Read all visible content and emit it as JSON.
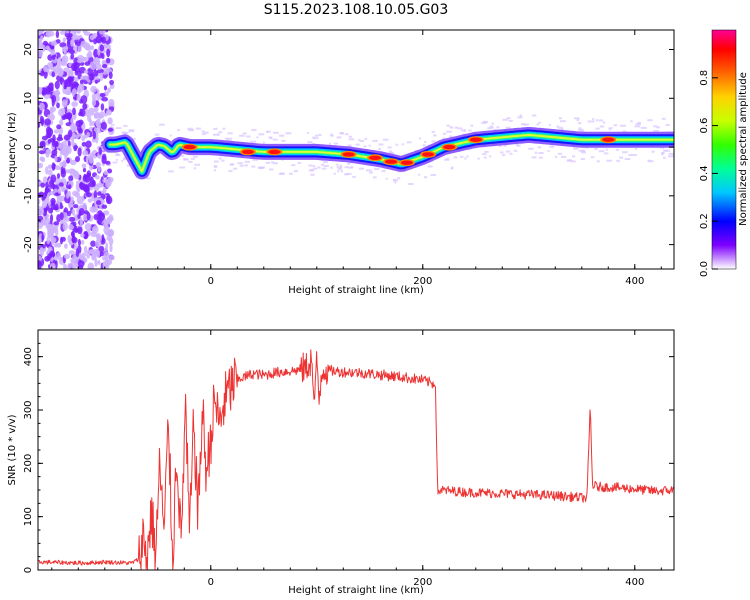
{
  "title": "S115.2023.108.10.05.G03",
  "chart_data": [
    {
      "type": "heatmap",
      "xlabel": "Height of straight line (km)",
      "ylabel": "Frequency (Hz)",
      "xlim": [
        -163,
        437
      ],
      "ylim": [
        -25,
        24
      ],
      "xticks": [
        0,
        200,
        400
      ],
      "yticks": [
        -20,
        -10,
        0,
        10,
        20
      ],
      "colorbar": {
        "label": "Normalized spectral amplitude",
        "range": [
          0,
          1
        ],
        "ticks": [
          "0.0",
          "0.2",
          "0.4",
          "0.6",
          "0.8"
        ]
      },
      "noise_region": {
        "x_range": [
          -163,
          -93
        ],
        "y_range": [
          -25,
          24
        ]
      },
      "ridge": [
        {
          "x": -90,
          "y": 0.5
        },
        {
          "x": -80,
          "y": 1
        },
        {
          "x": -70,
          "y": -3
        },
        {
          "x": -65,
          "y": -5
        },
        {
          "x": -58,
          "y": -1
        },
        {
          "x": -50,
          "y": 0.5
        },
        {
          "x": -44,
          "y": 0.2
        },
        {
          "x": -36,
          "y": -1.2
        },
        {
          "x": -30,
          "y": 0.5
        },
        {
          "x": -20,
          "y": 0
        },
        {
          "x": 0,
          "y": 0
        },
        {
          "x": 50,
          "y": -1
        },
        {
          "x": 100,
          "y": -1
        },
        {
          "x": 130,
          "y": -1.5
        },
        {
          "x": 160,
          "y": -2.5
        },
        {
          "x": 180,
          "y": -3.5
        },
        {
          "x": 200,
          "y": -2
        },
        {
          "x": 220,
          "y": 0
        },
        {
          "x": 250,
          "y": 1.5
        },
        {
          "x": 300,
          "y": 2.5
        },
        {
          "x": 350,
          "y": 1.5
        },
        {
          "x": 400,
          "y": 1.5
        },
        {
          "x": 437,
          "y": 1.5
        }
      ],
      "peaks": [
        {
          "x": -20,
          "y": 0
        },
        {
          "x": 35,
          "y": -1
        },
        {
          "x": 60,
          "y": -1
        },
        {
          "x": 130,
          "y": -1.5
        },
        {
          "x": 155,
          "y": -2.2
        },
        {
          "x": 170,
          "y": -3
        },
        {
          "x": 185,
          "y": -3.2
        },
        {
          "x": 205,
          "y": -1.5
        },
        {
          "x": 225,
          "y": 0
        },
        {
          "x": 250,
          "y": 1.5
        },
        {
          "x": 375,
          "y": 1.5
        }
      ]
    },
    {
      "type": "line",
      "xlabel": "Height of straight line (km)",
      "ylabel": "SNR (10 * v/v)",
      "xlim": [
        -163,
        437
      ],
      "ylim": [
        0,
        450
      ],
      "xticks": [
        0,
        200,
        400
      ],
      "yticks": [
        0,
        100,
        200,
        300,
        400
      ],
      "color": "#ee3333",
      "series": [
        {
          "x": [
            -163,
            -140,
            -120,
            -100,
            -75,
            -68,
            -64,
            -60,
            -56,
            -52,
            -48,
            -44,
            -40,
            -36,
            -32,
            -28,
            -24,
            -20,
            -16,
            -12,
            -8,
            -4,
            0,
            4,
            8,
            12,
            16,
            20,
            24,
            28,
            32,
            40,
            50,
            60,
            70,
            80,
            85,
            90,
            95,
            98,
            100,
            102,
            105,
            110,
            120,
            140,
            160,
            180,
            200,
            212,
            214,
            216,
            240,
            280,
            320,
            355,
            358,
            360,
            362,
            365,
            380,
            400,
            420,
            437
          ],
          "y": [
            15,
            14,
            13,
            15,
            13,
            20,
            60,
            25,
            110,
            30,
            200,
            60,
            280,
            20,
            230,
            40,
            310,
            60,
            280,
            100,
            300,
            180,
            250,
            320,
            270,
            310,
            330,
            345,
            355,
            360,
            362,
            368,
            365,
            370,
            372,
            374,
            376,
            380,
            395,
            300,
            405,
            320,
            380,
            375,
            372,
            370,
            366,
            362,
            356,
            348,
            145,
            150,
            146,
            143,
            140,
            135,
            310,
            160,
            158,
            156,
            155,
            152,
            148,
            150
          ]
        }
      ]
    }
  ]
}
